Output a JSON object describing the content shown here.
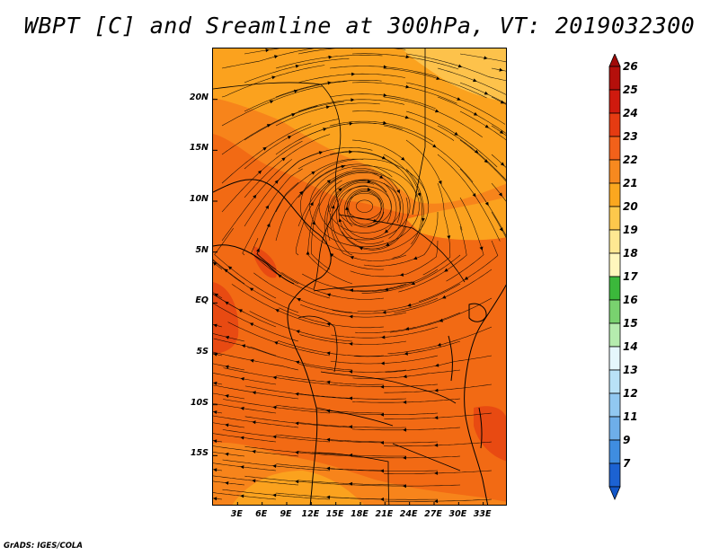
{
  "title": "WBPT [C] and Sreamline at 300hPa, VT: 2019032300",
  "footer": "GrADS: IGES/COLA",
  "map": {
    "lon_range": [
      0,
      36
    ],
    "lat_range": [
      -20,
      25
    ],
    "lat_ticks": [
      {
        "value": 20,
        "label": "20N"
      },
      {
        "value": 15,
        "label": "15N"
      },
      {
        "value": 10,
        "label": "10N"
      },
      {
        "value": 5,
        "label": "5N"
      },
      {
        "value": 0,
        "label": "EQ"
      },
      {
        "value": -5,
        "label": "5S"
      },
      {
        "value": -10,
        "label": "10S"
      },
      {
        "value": -15,
        "label": "15S"
      }
    ],
    "lon_ticks": [
      {
        "value": 3,
        "label": "3E"
      },
      {
        "value": 6,
        "label": "6E"
      },
      {
        "value": 9,
        "label": "9E"
      },
      {
        "value": 12,
        "label": "12E"
      },
      {
        "value": 15,
        "label": "15E"
      },
      {
        "value": 18,
        "label": "18E"
      },
      {
        "value": 21,
        "label": "21E"
      },
      {
        "value": 24,
        "label": "24E"
      },
      {
        "value": 27,
        "label": "27E"
      },
      {
        "value": 30,
        "label": "30E"
      },
      {
        "value": 33,
        "label": "33E"
      }
    ],
    "vortex_center": {
      "lon": 18.5,
      "lat": 9.5
    },
    "field_colors": {
      "c23": "#f26a14",
      "c22": "#f7841b",
      "c21": "#fba21e",
      "c20": "#fdc24b",
      "c24": "#e84a12"
    }
  },
  "colorbar": {
    "levels": [
      {
        "label": "26",
        "color": "#b40f0b"
      },
      {
        "label": "25",
        "color": "#cf1a0e"
      },
      {
        "label": "24",
        "color": "#e53b12"
      },
      {
        "label": "23",
        "color": "#f2611a"
      },
      {
        "label": "22",
        "color": "#f7891f"
      },
      {
        "label": "21",
        "color": "#fba71f"
      },
      {
        "label": "20",
        "color": "#fdc84c"
      },
      {
        "label": "19",
        "color": "#fee892"
      },
      {
        "label": "18",
        "color": "#fff7bd"
      },
      {
        "label": "17",
        "color": "#3bb83b"
      },
      {
        "label": "16",
        "color": "#79d26f"
      },
      {
        "label": "15",
        "color": "#b5ecae"
      },
      {
        "label": "14",
        "color": "#e5f7fc"
      },
      {
        "label": "13",
        "color": "#b9e2f7"
      },
      {
        "label": "12",
        "color": "#91c8f1"
      },
      {
        "label": "11",
        "color": "#6eaee9"
      },
      {
        "label": "9",
        "color": "#3f8de0"
      },
      {
        "label": "7",
        "color": "#1c62d2"
      }
    ],
    "top_arrow_color": "#a00a08",
    "bottom_arrow_color": "#1257c9"
  }
}
